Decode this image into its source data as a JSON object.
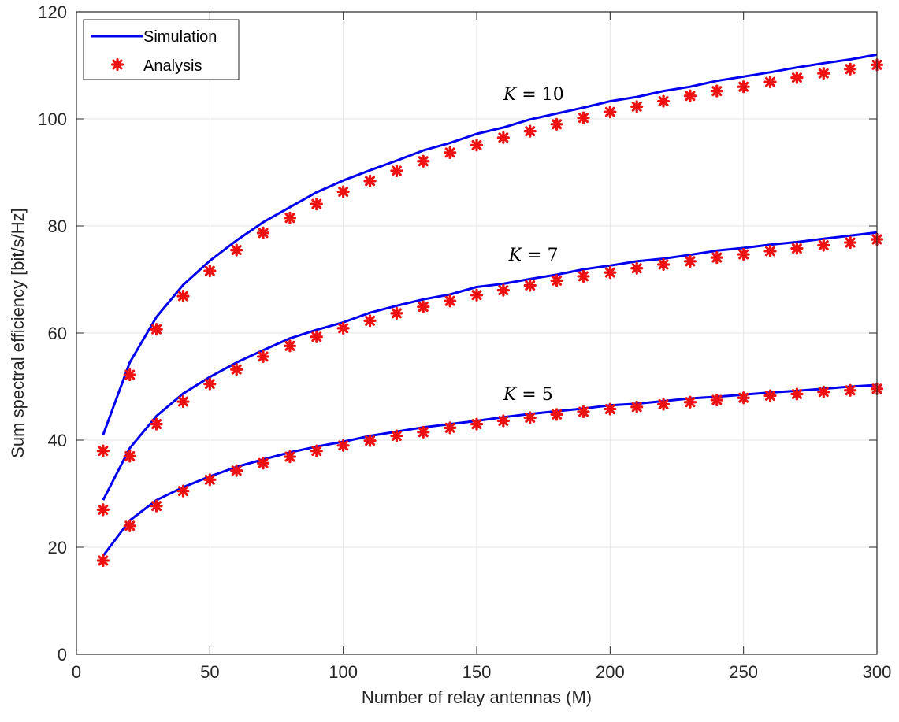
{
  "chart_data": {
    "type": "line",
    "title": "",
    "xlabel": "Number of relay antennas (M)",
    "ylabel": "Sum spectral efficiency [bit/s/Hz]",
    "xlim": [
      0,
      300
    ],
    "ylim": [
      0,
      120
    ],
    "xticks": [
      "0",
      "50",
      "100",
      "150",
      "200",
      "250",
      "300"
    ],
    "yticks": [
      "0",
      "20",
      "40",
      "60",
      "80",
      "100",
      "120"
    ],
    "grid": true,
    "legend_position": "top-left",
    "legend": [
      "Simulation",
      "Analysis"
    ],
    "colors": {
      "simulation": "#0000ee",
      "analysis": "#ee1111",
      "grid": "#e6e6e6",
      "axis": "#262626"
    },
    "x": [
      10,
      20,
      30,
      40,
      50,
      60,
      70,
      80,
      90,
      100,
      110,
      120,
      130,
      140,
      150,
      160,
      170,
      180,
      190,
      200,
      210,
      220,
      230,
      240,
      250,
      260,
      270,
      280,
      290,
      300
    ],
    "series": [
      {
        "name": "Simulation",
        "group": "K=10",
        "style": "line",
        "values": [
          41.0,
          54.5,
          63.0,
          69.0,
          73.5,
          77.3,
          80.7,
          83.5,
          86.3,
          88.5,
          90.4,
          92.2,
          94.1,
          95.5,
          97.2,
          98.4,
          99.9,
          101.0,
          102.1,
          103.3,
          104.1,
          105.2,
          106.0,
          107.1,
          107.9,
          108.7,
          109.6,
          110.4,
          111.1,
          112.0
        ]
      },
      {
        "name": "Analysis",
        "group": "K=10",
        "style": "marker",
        "values": [
          38.0,
          52.2,
          60.7,
          66.9,
          71.6,
          75.5,
          78.7,
          81.5,
          84.1,
          86.4,
          88.4,
          90.3,
          92.1,
          93.7,
          95.1,
          96.5,
          97.7,
          99.0,
          100.2,
          101.3,
          102.3,
          103.3,
          104.3,
          105.2,
          106.0,
          106.9,
          107.7,
          108.5,
          109.3,
          110.1
        ]
      },
      {
        "name": "Simulation",
        "group": "K=7",
        "style": "line",
        "values": [
          28.8,
          38.5,
          44.5,
          48.7,
          51.8,
          54.5,
          56.8,
          59.0,
          60.6,
          62.0,
          63.8,
          65.1,
          66.3,
          67.2,
          68.6,
          69.2,
          70.1,
          70.9,
          71.9,
          72.6,
          73.4,
          73.9,
          74.6,
          75.4,
          75.9,
          76.5,
          77.0,
          77.6,
          78.2,
          78.8
        ]
      },
      {
        "name": "Analysis",
        "group": "K=7",
        "style": "marker",
        "values": [
          27.0,
          37.0,
          43.0,
          47.2,
          50.5,
          53.2,
          55.6,
          57.6,
          59.3,
          60.9,
          62.3,
          63.7,
          64.9,
          66.0,
          67.1,
          68.0,
          68.9,
          69.8,
          70.6,
          71.3,
          72.1,
          72.8,
          73.4,
          74.1,
          74.7,
          75.3,
          75.8,
          76.4,
          76.9,
          77.5
        ]
      },
      {
        "name": "Simulation",
        "group": "K=5",
        "style": "line",
        "values": [
          18.4,
          25.0,
          28.8,
          31.2,
          33.2,
          35.0,
          36.4,
          37.7,
          38.8,
          39.7,
          40.8,
          41.6,
          42.4,
          43.0,
          43.6,
          44.3,
          44.9,
          45.4,
          45.9,
          46.5,
          46.8,
          47.3,
          47.8,
          48.1,
          48.5,
          48.9,
          49.2,
          49.6,
          50.0,
          50.3
        ]
      },
      {
        "name": "Analysis",
        "group": "K=5",
        "style": "marker",
        "values": [
          17.5,
          24.0,
          27.7,
          30.5,
          32.6,
          34.3,
          35.7,
          36.9,
          38.0,
          39.0,
          39.9,
          40.8,
          41.5,
          42.3,
          43.0,
          43.6,
          44.2,
          44.8,
          45.3,
          45.8,
          46.2,
          46.7,
          47.1,
          47.5,
          47.9,
          48.3,
          48.6,
          49.0,
          49.3,
          49.6
        ]
      }
    ],
    "annotations": [
      {
        "var": "K",
        "op": " = ",
        "num": "10",
        "x": 160,
        "y": 103.5
      },
      {
        "var": "K",
        "op": " = ",
        "num": "7",
        "x": 162,
        "y": 73.5
      },
      {
        "var": "K",
        "op": " = ",
        "num": "5",
        "x": 160,
        "y": 47.5
      }
    ]
  }
}
